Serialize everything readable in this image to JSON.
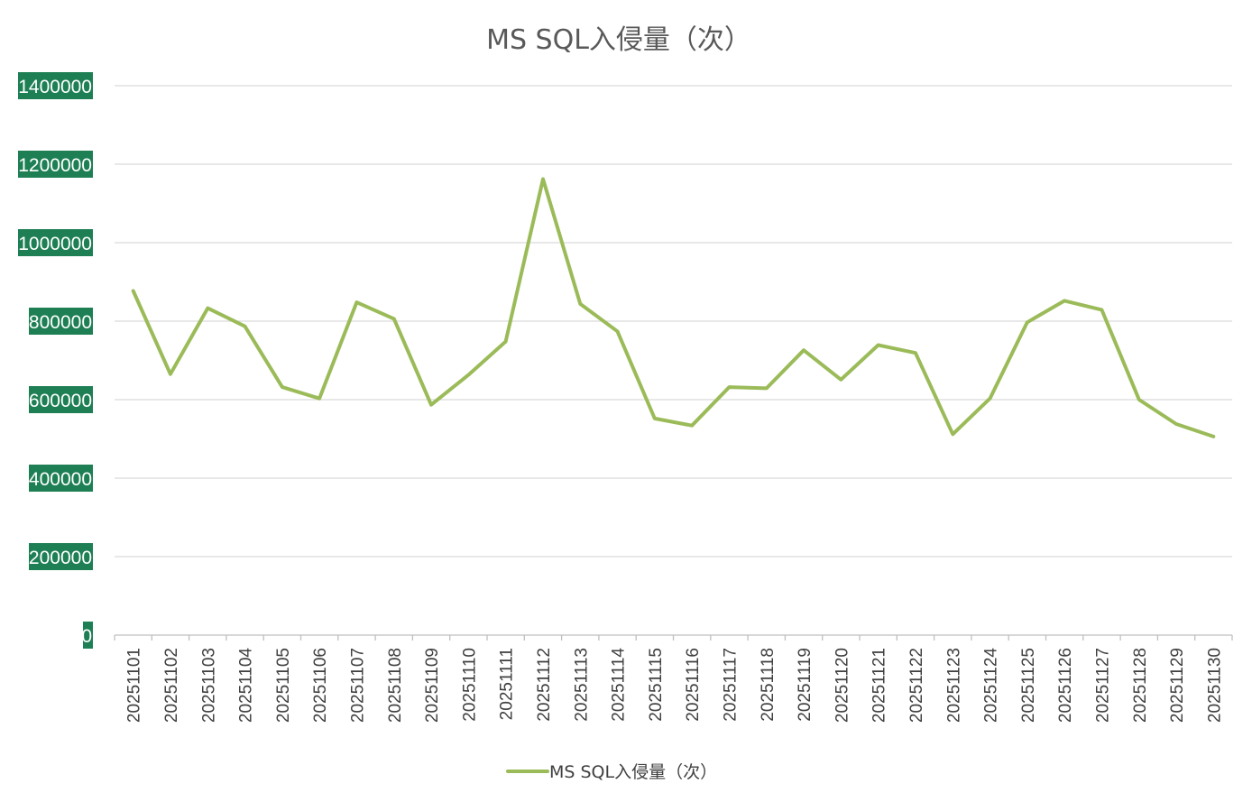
{
  "chart_data": {
    "type": "line",
    "title": "MS SQL入侵量（次）",
    "xlabel": "",
    "ylabel": "",
    "ylim": [
      0,
      1400000
    ],
    "yticks": [
      "0",
      "200000",
      "400000",
      "600000",
      "800000",
      "1000000",
      "1200000",
      "1400000"
    ],
    "grid": true,
    "legend_position": "bottom",
    "categories": [
      "20251101",
      "20251102",
      "20251103",
      "20251104",
      "20251105",
      "20251106",
      "20251107",
      "20251108",
      "20251109",
      "20251110",
      "20251111",
      "20251112",
      "20251113",
      "20251114",
      "20251115",
      "20251116",
      "20251117",
      "20251118",
      "20251119",
      "20251120",
      "20251121",
      "20251122",
      "20251123",
      "20251124",
      "20251125",
      "20251126",
      "20251127",
      "20251128",
      "20251129",
      "20251130"
    ],
    "series": [
      {
        "name": "MS SQL入侵量（次）",
        "color": "#9bbb59",
        "values": [
          877000,
          665000,
          833000,
          787000,
          632000,
          603000,
          848000,
          806000,
          587000,
          663000,
          748000,
          1162000,
          844000,
          774000,
          552000,
          534000,
          632000,
          629000,
          726000,
          651000,
          739000,
          719000,
          512000,
          603000,
          797000,
          852000,
          829000,
          600000,
          538000,
          506000
        ]
      }
    ]
  }
}
